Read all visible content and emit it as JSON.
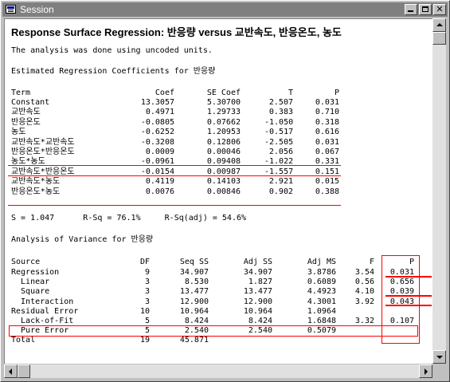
{
  "window": {
    "title": "Session"
  },
  "heading": "Response Surface Regression: 반응량 versus 교반속도, 반응온도, 농도",
  "uncoded_note": "The analysis was done using uncoded units.",
  "coef_section": {
    "title": "Estimated Regression Coefficients for 반응량",
    "headers": [
      "Term",
      "Coef",
      "SE Coef",
      "T",
      "P"
    ],
    "rows": [
      [
        "Constant",
        "13.3057",
        "5.30700",
        "2.507",
        "0.031"
      ],
      [
        "교반속도",
        "0.4971",
        "1.29733",
        "0.383",
        "0.710"
      ],
      [
        "반응온도",
        "-0.0805",
        "0.07662",
        "-1.050",
        "0.318"
      ],
      [
        "농도",
        "-0.6252",
        "1.20953",
        "-0.517",
        "0.616"
      ],
      [
        "교반속도*교반속도",
        "-0.3208",
        "0.12806",
        "-2.505",
        "0.031"
      ],
      [
        "반응온도*반응온도",
        "0.0009",
        "0.00046",
        "2.056",
        "0.067"
      ],
      [
        "농도*농도",
        "-0.0961",
        "0.09408",
        "-1.022",
        "0.331"
      ],
      [
        "교반속도*반응온도",
        "-0.0154",
        "0.00987",
        "-1.557",
        "0.151"
      ],
      [
        "교반속도*농도",
        "0.4119",
        "0.14103",
        "2.921",
        "0.015"
      ],
      [
        "반응온도*농도",
        "0.0076",
        "0.00846",
        "0.902",
        "0.388"
      ]
    ]
  },
  "fit_stats": "S = 1.047      R-Sq = 76.1%     R-Sq(adj) = 54.6%",
  "anova_section": {
    "title": "Analysis of Variance for 반응량",
    "headers": [
      "Source",
      "DF",
      "Seq SS",
      "Adj SS",
      "Adj MS",
      "F",
      "P"
    ],
    "rows": [
      [
        "Regression",
        "9",
        "34.907",
        "34.907",
        "3.8786",
        "3.54",
        "0.031"
      ],
      [
        "  Linear",
        "3",
        "8.530",
        "1.827",
        "0.6089",
        "0.56",
        "0.656"
      ],
      [
        "  Square",
        "3",
        "13.477",
        "13.477",
        "4.4923",
        "4.10",
        "0.039"
      ],
      [
        "  Interaction",
        "3",
        "12.900",
        "12.900",
        "4.3001",
        "3.92",
        "0.043"
      ],
      [
        "Residual Error",
        "10",
        "10.964",
        "10.964",
        "1.0964",
        "",
        ""
      ],
      [
        "  Lack-of-Fit",
        "5",
        "8.424",
        "8.424",
        "1.6848",
        "3.32",
        "0.107"
      ],
      [
        "  Pure Error",
        "5",
        "2.540",
        "2.540",
        "0.5079",
        "",
        ""
      ],
      [
        "Total",
        "19",
        "45.871",
        "",
        "",
        "",
        ""
      ]
    ]
  },
  "colors": {
    "highlight": "#ff0000",
    "titlebar_inactive": "#808080"
  },
  "icons": [
    "session-app-icon",
    "minimize-icon",
    "maximize-icon",
    "close-icon",
    "scroll-up-icon",
    "scroll-down-icon",
    "scroll-left-icon",
    "scroll-right-icon"
  ]
}
